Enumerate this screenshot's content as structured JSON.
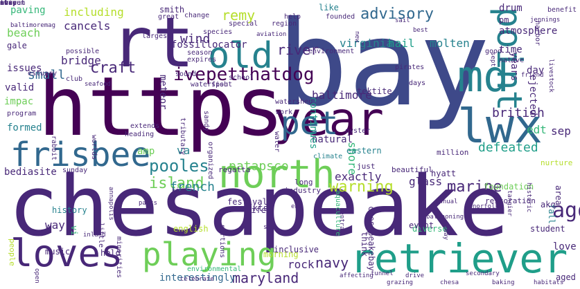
{
  "palette": {
    "dark_purple": "#440154",
    "indigo": "#482878",
    "blue": "#3e4989",
    "slate": "#31688e",
    "teal": "#26828e",
    "green_teal": "#1f9e89",
    "green": "#35b779",
    "light_green": "#6ece58",
    "lime": "#b5de2b"
  },
  "words": [
    {
      "text": "chesapeake",
      "weight": 1.0,
      "color": "indigo"
    },
    {
      "text": "bay",
      "weight": 0.95,
      "color": "blue"
    },
    {
      "text": "https",
      "weight": 0.9,
      "color": "dark_purple"
    },
    {
      "text": "rt",
      "weight": 0.7,
      "color": "indigo"
    },
    {
      "text": "md",
      "weight": 0.5,
      "color": "teal"
    },
    {
      "text": "year",
      "weight": 0.5,
      "color": "dark_purple"
    },
    {
      "text": "north",
      "weight": 0.5,
      "color": "light_green"
    },
    {
      "text": "retriever",
      "weight": 0.5,
      "color": "green_teal"
    },
    {
      "text": "old",
      "weight": 0.45,
      "color": "teal"
    },
    {
      "text": "point",
      "weight": 0.45,
      "color": "teal"
    },
    {
      "text": "lwx",
      "weight": 0.45,
      "color": "slate"
    },
    {
      "text": "loves",
      "weight": 0.42,
      "color": "indigo"
    },
    {
      "text": "playing",
      "weight": 0.42,
      "color": "light_green"
    },
    {
      "text": "pet",
      "weight": 0.4,
      "color": "slate"
    },
    {
      "text": "frisbee",
      "weight": 0.38,
      "color": "slate"
    },
    {
      "text": "ivepetthatdog",
      "weight": 0.22,
      "color": "dark_purple"
    },
    {
      "text": "pooles",
      "weight": 0.22,
      "color": "teal"
    },
    {
      "text": "island",
      "weight": 0.2,
      "color": "light_green"
    },
    {
      "text": "remy",
      "weight": 0.2,
      "color": "lime"
    },
    {
      "text": "advisory",
      "weight": 0.2,
      "color": "slate"
    },
    {
      "text": "river",
      "weight": 0.18,
      "color": "indigo"
    },
    {
      "text": "virginia",
      "weight": 0.18,
      "color": "teal"
    },
    {
      "text": "warning",
      "weight": 0.18,
      "color": "lime"
    },
    {
      "text": "marine",
      "weight": 0.18,
      "color": "indigo"
    },
    {
      "text": "craft",
      "weight": 0.16,
      "color": "indigo"
    },
    {
      "text": "small",
      "weight": 0.16,
      "color": "slate"
    },
    {
      "text": "baltimore",
      "weight": 0.16,
      "color": "indigo"
    },
    {
      "text": "patapsco",
      "weight": 0.16,
      "color": "light_green"
    },
    {
      "text": "maryland",
      "weight": 0.16,
      "color": "indigo"
    },
    {
      "text": "navy",
      "weight": 0.16,
      "color": "indigo"
    },
    {
      "text": "british",
      "weight": 0.14,
      "color": "indigo"
    },
    {
      "text": "defeated",
      "weight": 0.14,
      "color": "green_teal"
    },
    {
      "text": "ago",
      "weight": 0.18,
      "color": "indigo"
    },
    {
      "text": "including",
      "weight": 0.14,
      "color": "lime"
    },
    {
      "text": "cancels",
      "weight": 0.14,
      "color": "indigo"
    },
    {
      "text": "bridge",
      "weight": 0.14,
      "color": "indigo"
    },
    {
      "text": "beach",
      "weight": 0.12,
      "color": "light_green"
    },
    {
      "text": "wind",
      "weight": 0.14,
      "color": "indigo"
    },
    {
      "text": "hail",
      "weight": 0.14,
      "color": "green_teal"
    },
    {
      "text": "molten",
      "weight": 0.14,
      "color": "teal"
    },
    {
      "text": "glass",
      "weight": 0.14,
      "color": "indigo"
    },
    {
      "text": "french",
      "weight": 0.12,
      "color": "teal"
    },
    {
      "text": "exactly",
      "weight": 0.14,
      "color": "indigo"
    },
    {
      "text": "natural",
      "weight": 0.12,
      "color": "indigo"
    },
    {
      "text": "shore",
      "weight": 0.12,
      "color": "green"
    },
    {
      "text": "va",
      "weight": 0.12,
      "color": "teal"
    },
    {
      "text": "rock",
      "weight": 0.12,
      "color": "indigo"
    },
    {
      "text": "way",
      "weight": 0.12,
      "color": "indigo"
    },
    {
      "text": "sep",
      "weight": 0.12,
      "color": "indigo"
    },
    {
      "text": "edt",
      "weight": 0.12,
      "color": "green"
    },
    {
      "text": "years",
      "weight": 0.12,
      "color": "indigo"
    },
    {
      "text": "continues",
      "weight": 0.12,
      "color": "green_teal"
    },
    {
      "text": "atmosphere",
      "weight": 0.12,
      "color": "indigo"
    },
    {
      "text": "time",
      "weight": 0.12,
      "color": "indigo"
    },
    {
      "text": "day",
      "weight": 0.12,
      "color": "indigo"
    },
    {
      "text": "drum",
      "weight": 0.12,
      "color": "indigo"
    },
    {
      "text": "issues",
      "weight": 0.12,
      "color": "indigo"
    },
    {
      "text": "gale",
      "weight": 0.12,
      "color": "indigo"
    },
    {
      "text": "paving",
      "weight": 0.1,
      "color": "green"
    },
    {
      "text": "smith",
      "weight": 0.1,
      "color": "indigo"
    },
    {
      "text": "fossillocator",
      "weight": 0.1,
      "color": "indigo"
    },
    {
      "text": "meteor",
      "weight": 0.1,
      "color": "indigo"
    },
    {
      "text": "ejected",
      "weight": 0.1,
      "color": "indigo"
    },
    {
      "text": "tektite",
      "weight": 0.1,
      "color": "indigo"
    },
    {
      "text": "impac",
      "weight": 0.1,
      "color": "light_green"
    },
    {
      "text": "valid",
      "weight": 0.1,
      "color": "indigo"
    },
    {
      "text": "formed",
      "weight": 0.1,
      "color": "teal"
    },
    {
      "text": "eastern",
      "weight": 0.1,
      "color": "teal"
    },
    {
      "text": "bediasite",
      "weight": 0.1,
      "color": "indigo"
    },
    {
      "text": "amp",
      "weight": 0.1,
      "color": "light_green"
    },
    {
      "text": "kts",
      "weight": 0.1,
      "color": "indigo"
    },
    {
      "text": "chesapeakebay",
      "weight": 0.08,
      "color": "indigo"
    },
    {
      "text": "interestingly",
      "weight": 0.08,
      "color": "slate"
    },
    {
      "text": "festival",
      "weight": 0.08,
      "color": "indigo"
    },
    {
      "text": "vi",
      "weight": 0.08,
      "color": "green"
    },
    {
      "text": "pm",
      "weight": 0.1,
      "color": "indigo"
    },
    {
      "text": "love",
      "weight": 0.08,
      "color": "indigo"
    },
    {
      "text": "like",
      "weight": 0.08,
      "color": "teal"
    },
    {
      "text": "area",
      "weight": 0.08,
      "color": "indigo"
    },
    {
      "text": "fall",
      "weight": 0.08,
      "color": "teal"
    },
    {
      "text": "aged",
      "weight": 0.08,
      "color": "indigo"
    },
    {
      "text": "akq",
      "weight": 0.08,
      "color": "indigo"
    },
    {
      "text": "english",
      "weight": 0.06,
      "color": "lime"
    },
    {
      "text": "inclusive",
      "weight": 0.06,
      "color": "indigo"
    },
    {
      "text": "history",
      "weight": 0.06,
      "color": "teal"
    },
    {
      "text": "life",
      "weight": 0.06,
      "color": "indigo"
    },
    {
      "text": "held",
      "weight": 0.06,
      "color": "indigo"
    },
    {
      "text": "music",
      "weight": 0.06,
      "color": "indigo"
    },
    {
      "text": "think",
      "weight": 0.06,
      "color": "indigo"
    },
    {
      "text": "diverse",
      "weight": 0.06,
      "color": "green"
    },
    {
      "text": "morning",
      "weight": 0.06,
      "color": "lime"
    },
    {
      "text": "event",
      "weight": 0.06,
      "color": "indigo"
    },
    {
      "text": "student",
      "weight": 0.06,
      "color": "indigo"
    },
    {
      "text": "people",
      "weight": 0.06,
      "color": "lime"
    },
    {
      "text": "restoration",
      "weight": 0.06,
      "color": "indigo"
    },
    {
      "text": "foundation",
      "weight": 0.06,
      "color": "light_green"
    },
    {
      "text": "hyatt",
      "weight": 0.06,
      "color": "indigo"
    },
    {
      "text": "nurture",
      "weight": 0.06,
      "color": "lime"
    },
    {
      "text": "million",
      "weight": 0.06,
      "color": "indigo"
    },
    {
      "text": "beautiful",
      "weight": 0.06,
      "color": "indigo"
    },
    {
      "text": "industry",
      "weight": 0.06,
      "color": "indigo"
    },
    {
      "text": "long",
      "weight": 0.06,
      "color": "indigo"
    },
    {
      "text": "just",
      "weight": 0.06,
      "color": "indigo"
    },
    {
      "text": "live",
      "weight": 0.06,
      "color": "indigo"
    },
    {
      "text": "regatta",
      "weight": 0.06,
      "color": "indigo"
    },
    {
      "text": "sunday",
      "weight": 0.05,
      "color": "indigo"
    },
    {
      "text": "little",
      "weight": 0.05,
      "color": "indigo"
    },
    {
      "text": "portions",
      "weight": 0.05,
      "color": "indigo"
    },
    {
      "text": "aquaculture",
      "weight": 0.05,
      "color": "green"
    },
    {
      "text": "environmental",
      "weight": 0.05,
      "color": "green"
    },
    {
      "text": "minorities",
      "weight": 0.05,
      "color": "indigo"
    },
    {
      "text": "climate",
      "weight": 0.05,
      "color": "teal"
    },
    {
      "text": "oyster",
      "weight": 0.05,
      "color": "indigo"
    },
    {
      "text": "work",
      "weight": 0.05,
      "color": "indigo"
    },
    {
      "text": "watershed",
      "weight": 0.05,
      "color": "indigo"
    },
    {
      "text": "water",
      "weight": 0.05,
      "color": "indigo"
    },
    {
      "text": "organized",
      "weight": 0.05,
      "color": "indigo"
    },
    {
      "text": "sandy",
      "weight": 0.05,
      "color": "indigo"
    },
    {
      "text": "tributary",
      "weight": 0.05,
      "color": "indigo"
    },
    {
      "text": "heading",
      "weight": 0.05,
      "color": "indigo"
    },
    {
      "text": "extends",
      "weight": 0.05,
      "color": "indigo"
    },
    {
      "text": "worlds",
      "weight": 0.05,
      "color": "indigo"
    },
    {
      "text": "rabbit",
      "weight": 0.05,
      "color": "indigo"
    },
    {
      "text": "program",
      "weight": 0.05,
      "color": "indigo"
    },
    {
      "text": "estuary",
      "weight": 0.05,
      "color": "indigo"
    },
    {
      "text": "fish",
      "weight": 0.05,
      "color": "indigo"
    },
    {
      "text": "school",
      "weight": 0.05,
      "color": "indigo"
    },
    {
      "text": "waterspout",
      "weight": 0.05,
      "color": "indigo"
    },
    {
      "text": "sound",
      "weight": 0.05,
      "color": "indigo"
    },
    {
      "text": "club",
      "weight": 0.05,
      "color": "indigo"
    },
    {
      "text": "possible",
      "weight": 0.05,
      "color": "indigo"
    },
    {
      "text": "expires",
      "weight": 0.05,
      "color": "indigo"
    },
    {
      "text": "season",
      "weight": 0.05,
      "color": "indigo"
    },
    {
      "text": "species",
      "weight": 0.05,
      "color": "indigo"
    },
    {
      "text": "largest",
      "weight": 0.05,
      "color": "indigo"
    },
    {
      "text": "great",
      "weight": 0.05,
      "color": "indigo"
    },
    {
      "text": "change",
      "weight": 0.05,
      "color": "indigo"
    },
    {
      "text": "help",
      "weight": 0.05,
      "color": "indigo"
    },
    {
      "text": "founded",
      "weight": 0.05,
      "color": "indigo"
    },
    {
      "text": "special",
      "weight": 0.05,
      "color": "indigo"
    },
    {
      "text": "region",
      "weight": 0.05,
      "color": "indigo"
    },
    {
      "text": "environment",
      "weight": 0.05,
      "color": "indigo"
    },
    {
      "text": "pirates",
      "weight": 0.05,
      "color": "indigo"
    },
    {
      "text": "days",
      "weight": 0.05,
      "color": "indigo"
    },
    {
      "text": "good",
      "weight": 0.05,
      "color": "indigo"
    },
    {
      "text": "native",
      "weight": 0.05,
      "color": "indigo"
    },
    {
      "text": "benefit",
      "weight": 0.05,
      "color": "indigo"
    },
    {
      "text": "harbor",
      "weight": 0.05,
      "color": "indigo"
    },
    {
      "text": "jennings",
      "weight": 0.05,
      "color": "indigo"
    },
    {
      "text": "friend",
      "weight": 0.04,
      "color": "indigo"
    },
    {
      "text": "livestock",
      "weight": 0.04,
      "color": "indigo"
    },
    {
      "text": "historic",
      "weight": 0.04,
      "color": "indigo"
    },
    {
      "text": "tangier",
      "weight": 0.04,
      "color": "indigo"
    },
    {
      "text": "today",
      "weight": 0.04,
      "color": "indigo"
    },
    {
      "text": "central",
      "weight": 0.04,
      "color": "indigo"
    },
    {
      "text": "annapolis",
      "weight": 0.04,
      "color": "indigo"
    },
    {
      "text": "baltimoremag",
      "weight": 0.04,
      "color": "indigo"
    },
    {
      "text": "chesa",
      "weight": 0.04,
      "color": "indigo"
    },
    {
      "text": "seafood",
      "weight": 0.04,
      "color": "indigo"
    },
    {
      "text": "baking",
      "weight": 0.04,
      "color": "indigo"
    },
    {
      "text": "kind",
      "weight": 0.04,
      "color": "indigo"
    },
    {
      "text": "celebrate",
      "weight": 0.04,
      "color": "indigo"
    },
    {
      "text": "habitats",
      "weight": 0.04,
      "color": "indigo"
    },
    {
      "text": "secondary",
      "weight": 0.04,
      "color": "indigo"
    },
    {
      "text": "aviation",
      "weight": 0.04,
      "color": "indigo"
    },
    {
      "text": "inland",
      "weight": 0.04,
      "color": "indigo"
    },
    {
      "text": "norfolk",
      "weight": 0.04,
      "color": "indigo"
    },
    {
      "text": "open",
      "weight": 0.04,
      "color": "indigo"
    },
    {
      "text": "sept",
      "weight": 0.04,
      "color": "indigo"
    },
    {
      "text": "best",
      "weight": 0.04,
      "color": "indigo"
    },
    {
      "text": "new",
      "weight": 0.04,
      "color": "indigo"
    },
    {
      "text": "annual",
      "weight": 0.04,
      "color": "indigo"
    },
    {
      "text": "ballooning",
      "weight": 0.04,
      "color": "indigo"
    },
    {
      "text": "affecting",
      "weight": 0.04,
      "color": "indigo"
    },
    {
      "text": "tunnel",
      "weight": 0.04,
      "color": "indigo"
    },
    {
      "text": "grazing",
      "weight": 0.04,
      "color": "indigo"
    },
    {
      "text": "drive",
      "weight": 0.04,
      "color": "indigo"
    },
    {
      "text": "parts",
      "weight": 0.04,
      "color": "indigo"
    },
    {
      "text": "sail",
      "weight": 0.04,
      "color": "indigo"
    },
    {
      "text": "eat",
      "weight": 0.04,
      "color": "indigo"
    },
    {
      "text": "set",
      "weight": 0.04,
      "color": "indigo"
    },
    {
      "text": "away",
      "weight": 0.04,
      "color": "indigo"
    },
    {
      "text": "street",
      "weight": 0.04,
      "color": "indigo"
    },
    {
      "text": "museum",
      "weight": 0.04,
      "color": "indigo"
    },
    {
      "text": "ship",
      "weight": 0.04,
      "color": "indigo"
    },
    {
      "text": "tour",
      "weight": 0.04,
      "color": "indigo"
    },
    {
      "text": "nice",
      "weight": 0.04,
      "color": "indigo"
    }
  ]
}
